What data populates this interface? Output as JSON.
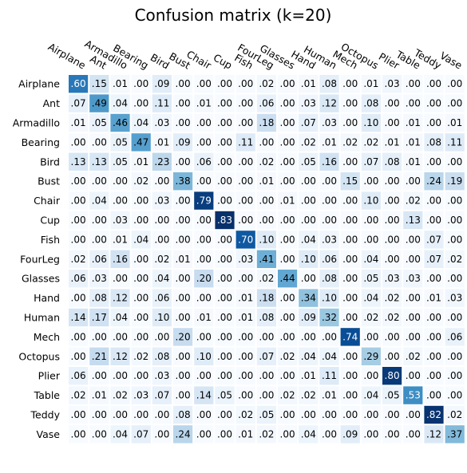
{
  "chart_data": {
    "type": "heatmap",
    "title": "Confusion matrix (k=20)",
    "labels": [
      "Airplane",
      "Ant",
      "Armadillo",
      "Bearing",
      "Bird",
      "Bust",
      "Chair",
      "Cup",
      "Fish",
      "FourLeg",
      "Glasses",
      "Hand",
      "Human",
      "Mech",
      "Octopus",
      "Plier",
      "Table",
      "Teddy",
      "Vase"
    ],
    "values": [
      [
        0.6,
        0.15,
        0.01,
        0.0,
        0.09,
        0.0,
        0.0,
        0.0,
        0.0,
        0.02,
        0.0,
        0.01,
        0.08,
        0.0,
        0.01,
        0.03,
        0.0,
        0.0,
        0.0
      ],
      [
        0.07,
        0.49,
        0.04,
        0.0,
        0.11,
        0.0,
        0.01,
        0.0,
        0.0,
        0.06,
        0.0,
        0.03,
        0.12,
        0.0,
        0.08,
        0.0,
        0.0,
        0.0,
        0.0
      ],
      [
        0.01,
        0.05,
        0.46,
        0.04,
        0.03,
        0.0,
        0.0,
        0.0,
        0.0,
        0.18,
        0.0,
        0.07,
        0.03,
        0.0,
        0.1,
        0.0,
        0.01,
        0.0,
        0.01
      ],
      [
        0.0,
        0.0,
        0.05,
        0.47,
        0.01,
        0.09,
        0.0,
        0.0,
        0.11,
        0.0,
        0.0,
        0.02,
        0.01,
        0.02,
        0.02,
        0.01,
        0.01,
        0.08,
        0.11
      ],
      [
        0.13,
        0.13,
        0.05,
        0.01,
        0.23,
        0.0,
        0.06,
        0.0,
        0.0,
        0.02,
        0.0,
        0.05,
        0.16,
        0.0,
        0.07,
        0.08,
        0.01,
        0.0,
        0.0
      ],
      [
        0.0,
        0.0,
        0.0,
        0.02,
        0.0,
        0.38,
        0.0,
        0.0,
        0.0,
        0.01,
        0.0,
        0.0,
        0.0,
        0.15,
        0.0,
        0.0,
        0.0,
        0.24,
        0.19
      ],
      [
        0.0,
        0.04,
        0.0,
        0.0,
        0.03,
        0.0,
        0.79,
        0.0,
        0.0,
        0.0,
        0.01,
        0.0,
        0.0,
        0.0,
        0.1,
        0.0,
        0.02,
        0.0,
        0.0
      ],
      [
        0.0,
        0.0,
        0.03,
        0.0,
        0.0,
        0.0,
        0.0,
        0.83,
        0.0,
        0.0,
        0.0,
        0.0,
        0.0,
        0.0,
        0.0,
        0.0,
        0.13,
        0.0,
        0.0
      ],
      [
        0.0,
        0.0,
        0.01,
        0.04,
        0.0,
        0.0,
        0.0,
        0.0,
        0.7,
        0.1,
        0.0,
        0.04,
        0.03,
        0.0,
        0.0,
        0.0,
        0.0,
        0.07,
        0.0
      ],
      [
        0.02,
        0.06,
        0.16,
        0.0,
        0.02,
        0.01,
        0.0,
        0.0,
        0.03,
        0.41,
        0.0,
        0.1,
        0.06,
        0.0,
        0.04,
        0.0,
        0.0,
        0.07,
        0.02
      ],
      [
        0.06,
        0.03,
        0.0,
        0.0,
        0.04,
        0.0,
        0.2,
        0.0,
        0.0,
        0.02,
        0.44,
        0.0,
        0.08,
        0.0,
        0.05,
        0.03,
        0.03,
        0.0,
        0.0
      ],
      [
        0.0,
        0.08,
        0.12,
        0.0,
        0.06,
        0.0,
        0.0,
        0.0,
        0.01,
        0.18,
        0.0,
        0.34,
        0.1,
        0.0,
        0.04,
        0.02,
        0.0,
        0.01,
        0.03
      ],
      [
        0.14,
        0.17,
        0.04,
        0.0,
        0.1,
        0.0,
        0.01,
        0.0,
        0.01,
        0.08,
        0.0,
        0.09,
        0.32,
        0.0,
        0.02,
        0.02,
        0.0,
        0.0,
        0.0
      ],
      [
        0.0,
        0.0,
        0.0,
        0.0,
        0.0,
        0.2,
        0.0,
        0.0,
        0.0,
        0.0,
        0.0,
        0.0,
        0.0,
        0.74,
        0.0,
        0.0,
        0.0,
        0.0,
        0.06
      ],
      [
        0.0,
        0.21,
        0.12,
        0.02,
        0.08,
        0.0,
        0.1,
        0.0,
        0.0,
        0.07,
        0.02,
        0.04,
        0.04,
        0.0,
        0.29,
        0.0,
        0.02,
        0.0,
        0.0
      ],
      [
        0.06,
        0.0,
        0.0,
        0.0,
        0.03,
        0.0,
        0.0,
        0.0,
        0.0,
        0.0,
        0.0,
        0.01,
        0.11,
        0.0,
        0.0,
        0.8,
        0.0,
        0.0,
        0.0
      ],
      [
        0.02,
        0.01,
        0.02,
        0.03,
        0.07,
        0.0,
        0.14,
        0.05,
        0.0,
        0.0,
        0.02,
        0.02,
        0.01,
        0.0,
        0.04,
        0.05,
        0.53,
        0.0,
        0.0
      ],
      [
        0.0,
        0.0,
        0.0,
        0.0,
        0.0,
        0.08,
        0.0,
        0.0,
        0.02,
        0.05,
        0.0,
        0.0,
        0.0,
        0.0,
        0.0,
        0.0,
        0.0,
        0.82,
        0.02
      ],
      [
        0.0,
        0.0,
        0.04,
        0.07,
        0.0,
        0.24,
        0.0,
        0.0,
        0.01,
        0.02,
        0.0,
        0.04,
        0.0,
        0.09,
        0.0,
        0.0,
        0.0,
        0.12,
        0.37
      ]
    ],
    "value_format": "leading-dot two decimals",
    "vmin": 0,
    "vmax": 0.83,
    "colormap": "Blues",
    "colors": {
      "low": "#f7fbff",
      "high": "#08306b",
      "text_dark": "#000000",
      "text_light": "#ffffff",
      "cell_gap": "#ffffff"
    },
    "legend": "none",
    "grid": false
  }
}
